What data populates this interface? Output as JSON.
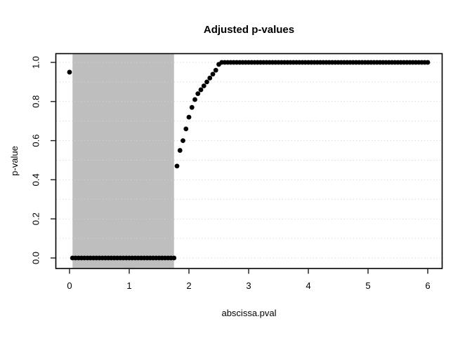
{
  "chart_data": {
    "type": "scatter",
    "title": "Adjusted p-values",
    "xlabel": "abscissa.pval",
    "ylabel": "p-value",
    "x_tick_values": [
      0,
      1,
      2,
      3,
      4,
      5,
      6
    ],
    "x_tick_labels": [
      "0",
      "1",
      "2",
      "3",
      "4",
      "5",
      "6"
    ],
    "y_tick_values": [
      0.0,
      0.2,
      0.4,
      0.6,
      0.8,
      1.0
    ],
    "y_tick_labels": [
      "0.0",
      "0.2",
      "0.4",
      "0.6",
      "0.8",
      "1.0"
    ],
    "xlim": [
      -0.24,
      6.24
    ],
    "ylim": [
      -0.05,
      1.05
    ],
    "grid": {
      "axis": "y",
      "values": [
        0,
        0.1,
        0.2,
        0.3,
        0.4,
        0.5,
        0.6,
        0.7,
        0.8,
        0.9,
        1.0
      ],
      "style": "dotted",
      "color": "#d3d3d3"
    },
    "shaded_region": {
      "x_from": 0.05,
      "x_to": 1.75,
      "full_height": true,
      "color": "#bebebe"
    },
    "point_color": "#000000",
    "point_style": "filled-circle",
    "points": [
      [
        0,
        0.95
      ],
      [
        0.05,
        0
      ],
      [
        0.1,
        0
      ],
      [
        0.15,
        0
      ],
      [
        0.2,
        0
      ],
      [
        0.25,
        0
      ],
      [
        0.3,
        0
      ],
      [
        0.35,
        0
      ],
      [
        0.4,
        0
      ],
      [
        0.45,
        0
      ],
      [
        0.5,
        0
      ],
      [
        0.55,
        0
      ],
      [
        0.6,
        0
      ],
      [
        0.65,
        0
      ],
      [
        0.7,
        0
      ],
      [
        0.75,
        0
      ],
      [
        0.8,
        0
      ],
      [
        0.85,
        0
      ],
      [
        0.9,
        0
      ],
      [
        0.95,
        0
      ],
      [
        1,
        0
      ],
      [
        1.05,
        0
      ],
      [
        1.1,
        0
      ],
      [
        1.15,
        0
      ],
      [
        1.2,
        0
      ],
      [
        1.25,
        0
      ],
      [
        1.3,
        0
      ],
      [
        1.35,
        0
      ],
      [
        1.4,
        0
      ],
      [
        1.45,
        0
      ],
      [
        1.5,
        0
      ],
      [
        1.55,
        0
      ],
      [
        1.6,
        0
      ],
      [
        1.65,
        0
      ],
      [
        1.7,
        0
      ],
      [
        1.75,
        0
      ],
      [
        1.8,
        0.47
      ],
      [
        1.85,
        0.55
      ],
      [
        1.9,
        0.6
      ],
      [
        1.95,
        0.66
      ],
      [
        2,
        0.72
      ],
      [
        2.05,
        0.77
      ],
      [
        2.1,
        0.81
      ],
      [
        2.15,
        0.84
      ],
      [
        2.2,
        0.86
      ],
      [
        2.25,
        0.88
      ],
      [
        2.3,
        0.9
      ],
      [
        2.35,
        0.92
      ],
      [
        2.4,
        0.94
      ],
      [
        2.45,
        0.96
      ],
      [
        2.5,
        0.99
      ],
      [
        2.55,
        1
      ],
      [
        2.6,
        1
      ],
      [
        2.65,
        1
      ],
      [
        2.7,
        1
      ],
      [
        2.75,
        1
      ],
      [
        2.8,
        1
      ],
      [
        2.85,
        1
      ],
      [
        2.9,
        1
      ],
      [
        2.95,
        1
      ],
      [
        3,
        1
      ],
      [
        3.05,
        1
      ],
      [
        3.1,
        1
      ],
      [
        3.15,
        1
      ],
      [
        3.2,
        1
      ],
      [
        3.25,
        1
      ],
      [
        3.3,
        1
      ],
      [
        3.35,
        1
      ],
      [
        3.4,
        1
      ],
      [
        3.45,
        1
      ],
      [
        3.5,
        1
      ],
      [
        3.55,
        1
      ],
      [
        3.6,
        1
      ],
      [
        3.65,
        1
      ],
      [
        3.7,
        1
      ],
      [
        3.75,
        1
      ],
      [
        3.8,
        1
      ],
      [
        3.85,
        1
      ],
      [
        3.9,
        1
      ],
      [
        3.95,
        1
      ],
      [
        4,
        1
      ],
      [
        4.05,
        1
      ],
      [
        4.1,
        1
      ],
      [
        4.15,
        1
      ],
      [
        4.2,
        1
      ],
      [
        4.25,
        1
      ],
      [
        4.3,
        1
      ],
      [
        4.35,
        1
      ],
      [
        4.4,
        1
      ],
      [
        4.45,
        1
      ],
      [
        4.5,
        1
      ],
      [
        4.55,
        1
      ],
      [
        4.6,
        1
      ],
      [
        4.65,
        1
      ],
      [
        4.7,
        1
      ],
      [
        4.75,
        1
      ],
      [
        4.8,
        1
      ],
      [
        4.85,
        1
      ],
      [
        4.9,
        1
      ],
      [
        4.95,
        1
      ],
      [
        5,
        1
      ],
      [
        5.05,
        1
      ],
      [
        5.1,
        1
      ],
      [
        5.15,
        1
      ],
      [
        5.2,
        1
      ],
      [
        5.25,
        1
      ],
      [
        5.3,
        1
      ],
      [
        5.35,
        1
      ],
      [
        5.4,
        1
      ],
      [
        5.45,
        1
      ],
      [
        5.5,
        1
      ],
      [
        5.55,
        1
      ],
      [
        5.6,
        1
      ],
      [
        5.65,
        1
      ],
      [
        5.7,
        1
      ],
      [
        5.75,
        1
      ],
      [
        5.8,
        1
      ],
      [
        5.85,
        1
      ],
      [
        5.9,
        1
      ],
      [
        5.95,
        1
      ],
      [
        6,
        1
      ]
    ]
  }
}
